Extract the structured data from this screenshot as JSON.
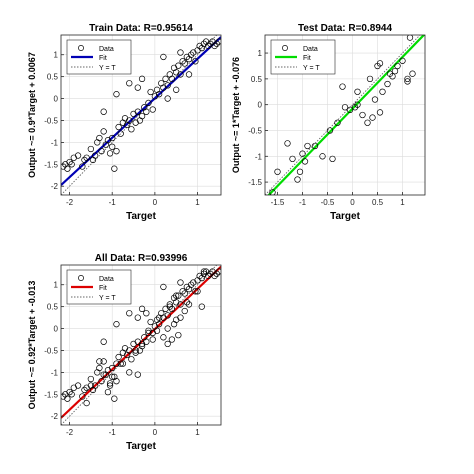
{
  "figure": {
    "background": "#ffffff"
  },
  "chart_data": [
    {
      "type": "scatter",
      "title": "Train Data: R=0.95614",
      "xlabel": "Target",
      "ylabel": "Output ~= 0.9*Target + 0.0067",
      "xlim": [
        -2.2,
        1.55
      ],
      "ylim": [
        -2.2,
        1.45
      ],
      "xticks": [
        -2,
        -1,
        0,
        1
      ],
      "yticks": [
        -2,
        -1.5,
        -1,
        -0.5,
        0,
        0.5,
        1
      ],
      "fit": {
        "slope": 0.9,
        "intercept": 0.0067,
        "color": "#0000b4"
      },
      "legend": {
        "position": "top-left",
        "entries": [
          "Data",
          "Fit",
          "Y = T"
        ]
      },
      "points": [
        [
          -2.15,
          -1.55
        ],
        [
          -2.1,
          -1.5
        ],
        [
          -2.05,
          -1.6
        ],
        [
          -2.0,
          -1.45
        ],
        [
          -1.95,
          -1.5
        ],
        [
          -1.9,
          -1.35
        ],
        [
          -1.8,
          -1.3
        ],
        [
          -1.7,
          -1.55
        ],
        [
          -1.65,
          -1.4
        ],
        [
          -1.6,
          -1.35
        ],
        [
          -1.5,
          -1.15
        ],
        [
          -1.45,
          -1.4
        ],
        [
          -1.4,
          -1.3
        ],
        [
          -1.35,
          -1.0
        ],
        [
          -1.3,
          -0.9
        ],
        [
          -1.25,
          -1.2
        ],
        [
          -1.2,
          -0.75
        ],
        [
          -1.15,
          -1.05
        ],
        [
          -1.1,
          -0.95
        ],
        [
          -1.05,
          -1.25
        ],
        [
          -1.0,
          -0.9
        ],
        [
          -1.0,
          -1.1
        ],
        [
          -0.95,
          -1.6
        ],
        [
          -0.9,
          -1.2
        ],
        [
          -0.85,
          -0.65
        ],
        [
          -0.8,
          -0.8
        ],
        [
          -0.75,
          -0.55
        ],
        [
          -0.7,
          -0.45
        ],
        [
          -0.65,
          -0.6
        ],
        [
          -0.6,
          -0.5
        ],
        [
          -0.55,
          -0.7
        ],
        [
          -0.5,
          -0.35
        ],
        [
          -0.45,
          -0.55
        ],
        [
          -0.4,
          -0.3
        ],
        [
          -0.35,
          -0.5
        ],
        [
          -0.3,
          -0.4
        ],
        [
          -0.25,
          -0.2
        ],
        [
          -0.2,
          -0.3
        ],
        [
          -0.15,
          -0.1
        ],
        [
          -0.1,
          0.15
        ],
        [
          -0.05,
          -0.25
        ],
        [
          0.0,
          0.05
        ],
        [
          0.05,
          0.2
        ],
        [
          0.1,
          0.1
        ],
        [
          0.15,
          0.35
        ],
        [
          0.2,
          0.25
        ],
        [
          0.25,
          0.45
        ],
        [
          0.3,
          0.3
        ],
        [
          0.35,
          0.55
        ],
        [
          0.4,
          0.45
        ],
        [
          0.45,
          0.7
        ],
        [
          0.5,
          0.6
        ],
        [
          0.55,
          0.75
        ],
        [
          0.6,
          0.55
        ],
        [
          0.65,
          0.85
        ],
        [
          0.7,
          0.8
        ],
        [
          0.75,
          0.95
        ],
        [
          0.8,
          0.9
        ],
        [
          0.85,
          1.0
        ],
        [
          0.9,
          1.05
        ],
        [
          0.95,
          0.85
        ],
        [
          1.0,
          1.1
        ],
        [
          1.05,
          1.2
        ],
        [
          1.1,
          1.15
        ],
        [
          1.15,
          1.25
        ],
        [
          1.2,
          1.3
        ],
        [
          1.25,
          1.2
        ],
        [
          1.3,
          1.25
        ],
        [
          1.35,
          1.3
        ],
        [
          1.4,
          1.2
        ],
        [
          -0.9,
          0.1
        ],
        [
          -0.6,
          0.35
        ],
        [
          -1.2,
          -0.3
        ],
        [
          -0.3,
          0.45
        ],
        [
          0.3,
          0.0
        ],
        [
          0.5,
          0.2
        ],
        [
          0.8,
          0.55
        ],
        [
          1.45,
          1.25
        ],
        [
          1.5,
          1.3
        ],
        [
          0.2,
          0.95
        ],
        [
          0.6,
          1.05
        ],
        [
          -0.4,
          0.25
        ]
      ]
    },
    {
      "type": "scatter",
      "title": "Test Data: R=0.8944",
      "xlabel": "Target",
      "ylabel": "Output ~= 1*Target + -0.076",
      "xlim": [
        -1.75,
        1.45
      ],
      "ylim": [
        -1.75,
        1.35
      ],
      "xticks": [
        -1.5,
        -1,
        -0.5,
        0,
        0.5,
        1
      ],
      "yticks": [
        -1.5,
        -1,
        -0.5,
        0,
        0.5,
        1
      ],
      "fit": {
        "slope": 1,
        "intercept": -0.076,
        "color": "#00dc00"
      },
      "legend": {
        "position": "top-left",
        "entries": [
          "Data",
          "Fit",
          "Y = T"
        ]
      },
      "points": [
        [
          -1.6,
          -1.7
        ],
        [
          -1.5,
          -1.3
        ],
        [
          -1.3,
          -0.75
        ],
        [
          -1.2,
          -1.05
        ],
        [
          -1.1,
          -1.45
        ],
        [
          -1.05,
          -1.3
        ],
        [
          -1.0,
          -0.95
        ],
        [
          -0.95,
          -1.1
        ],
        [
          -0.9,
          -0.8
        ],
        [
          -0.75,
          -0.8
        ],
        [
          -0.6,
          -1.0
        ],
        [
          -0.45,
          -0.5
        ],
        [
          -0.4,
          -1.05
        ],
        [
          -0.3,
          -0.35
        ],
        [
          -0.2,
          0.35
        ],
        [
          -0.15,
          -0.05
        ],
        [
          -0.05,
          -0.1
        ],
        [
          0.05,
          -0.05
        ],
        [
          0.1,
          0.0
        ],
        [
          0.1,
          0.25
        ],
        [
          0.2,
          -0.2
        ],
        [
          0.3,
          -0.35
        ],
        [
          0.35,
          0.5
        ],
        [
          0.4,
          -0.25
        ],
        [
          0.45,
          0.1
        ],
        [
          0.5,
          0.75
        ],
        [
          0.55,
          -0.15
        ],
        [
          0.55,
          0.8
        ],
        [
          0.6,
          0.25
        ],
        [
          0.7,
          0.4
        ],
        [
          0.75,
          0.6
        ],
        [
          0.8,
          0.55
        ],
        [
          0.85,
          0.65
        ],
        [
          0.9,
          0.75
        ],
        [
          1.0,
          0.85
        ],
        [
          1.1,
          0.5
        ],
        [
          1.1,
          0.45
        ],
        [
          1.15,
          1.3
        ],
        [
          1.2,
          0.6
        ]
      ]
    },
    {
      "type": "scatter",
      "title": "All Data: R=0.93996",
      "xlabel": "Target",
      "ylabel": "Output ~= 0.92*Target + -0.013",
      "xlim": [
        -2.2,
        1.55
      ],
      "ylim": [
        -2.2,
        1.45
      ],
      "xticks": [
        -2,
        -1,
        0,
        1
      ],
      "yticks": [
        -2,
        -1.5,
        -1,
        -0.5,
        0,
        0.5,
        1
      ],
      "fit": {
        "slope": 0.92,
        "intercept": -0.013,
        "color": "#dc0000"
      },
      "legend": {
        "position": "top-left",
        "entries": [
          "Data",
          "Fit",
          "Y = T"
        ]
      },
      "points": [
        [
          -2.15,
          -1.55
        ],
        [
          -2.1,
          -1.5
        ],
        [
          -2.05,
          -1.6
        ],
        [
          -2.0,
          -1.45
        ],
        [
          -1.95,
          -1.5
        ],
        [
          -1.9,
          -1.35
        ],
        [
          -1.8,
          -1.3
        ],
        [
          -1.7,
          -1.55
        ],
        [
          -1.65,
          -1.4
        ],
        [
          -1.6,
          -1.35
        ],
        [
          -1.6,
          -1.7
        ],
        [
          -1.5,
          -1.15
        ],
        [
          -1.5,
          -1.3
        ],
        [
          -1.45,
          -1.4
        ],
        [
          -1.4,
          -1.3
        ],
        [
          -1.35,
          -1.0
        ],
        [
          -1.3,
          -0.9
        ],
        [
          -1.3,
          -0.75
        ],
        [
          -1.25,
          -1.2
        ],
        [
          -1.2,
          -0.75
        ],
        [
          -1.2,
          -1.05
        ],
        [
          -1.15,
          -1.05
        ],
        [
          -1.1,
          -0.95
        ],
        [
          -1.1,
          -1.45
        ],
        [
          -1.05,
          -1.25
        ],
        [
          -1.05,
          -1.3
        ],
        [
          -1.0,
          -0.9
        ],
        [
          -1.0,
          -1.1
        ],
        [
          -0.95,
          -1.6
        ],
        [
          -0.95,
          -1.1
        ],
        [
          -0.9,
          -1.2
        ],
        [
          -0.9,
          -0.8
        ],
        [
          -0.85,
          -0.65
        ],
        [
          -0.8,
          -0.8
        ],
        [
          -0.75,
          -0.55
        ],
        [
          -0.75,
          -0.8
        ],
        [
          -0.7,
          -0.45
        ],
        [
          -0.65,
          -0.6
        ],
        [
          -0.6,
          -0.5
        ],
        [
          -0.6,
          -1.0
        ],
        [
          -0.55,
          -0.7
        ],
        [
          -0.5,
          -0.35
        ],
        [
          -0.45,
          -0.55
        ],
        [
          -0.45,
          -0.5
        ],
        [
          -0.4,
          -0.3
        ],
        [
          -0.4,
          -1.05
        ],
        [
          -0.35,
          -0.5
        ],
        [
          -0.3,
          -0.4
        ],
        [
          -0.3,
          -0.35
        ],
        [
          -0.25,
          -0.2
        ],
        [
          -0.2,
          -0.3
        ],
        [
          -0.2,
          0.35
        ],
        [
          -0.15,
          -0.1
        ],
        [
          -0.15,
          -0.05
        ],
        [
          -0.1,
          0.15
        ],
        [
          -0.05,
          -0.25
        ],
        [
          -0.05,
          -0.1
        ],
        [
          0.0,
          0.05
        ],
        [
          0.05,
          0.2
        ],
        [
          0.05,
          -0.05
        ],
        [
          0.1,
          0.1
        ],
        [
          0.1,
          0.25
        ],
        [
          0.15,
          0.35
        ],
        [
          0.2,
          0.25
        ],
        [
          0.2,
          -0.2
        ],
        [
          0.25,
          0.45
        ],
        [
          0.3,
          0.3
        ],
        [
          0.3,
          -0.35
        ],
        [
          0.35,
          0.55
        ],
        [
          0.35,
          0.5
        ],
        [
          0.4,
          0.45
        ],
        [
          0.4,
          -0.25
        ],
        [
          0.45,
          0.7
        ],
        [
          0.45,
          0.1
        ],
        [
          0.5,
          0.6
        ],
        [
          0.5,
          0.75
        ],
        [
          0.55,
          0.75
        ],
        [
          0.55,
          -0.15
        ],
        [
          0.6,
          0.55
        ],
        [
          0.6,
          0.25
        ],
        [
          0.65,
          0.85
        ],
        [
          0.7,
          0.8
        ],
        [
          0.7,
          0.4
        ],
        [
          0.75,
          0.95
        ],
        [
          0.75,
          0.6
        ],
        [
          0.8,
          0.9
        ],
        [
          0.85,
          1.0
        ],
        [
          0.9,
          1.05
        ],
        [
          0.95,
          0.85
        ],
        [
          1.0,
          1.1
        ],
        [
          1.0,
          0.85
        ],
        [
          1.05,
          1.2
        ],
        [
          1.1,
          1.15
        ],
        [
          1.1,
          0.5
        ],
        [
          1.15,
          1.25
        ],
        [
          1.15,
          1.3
        ],
        [
          1.2,
          1.3
        ],
        [
          1.25,
          1.2
        ],
        [
          1.3,
          1.25
        ],
        [
          1.35,
          1.3
        ],
        [
          1.4,
          1.2
        ],
        [
          -0.9,
          0.1
        ],
        [
          -0.6,
          0.35
        ],
        [
          -1.2,
          -0.3
        ],
        [
          -0.3,
          0.45
        ],
        [
          0.3,
          0.0
        ],
        [
          0.5,
          0.2
        ],
        [
          0.8,
          0.55
        ],
        [
          1.45,
          1.25
        ],
        [
          1.5,
          1.3
        ],
        [
          0.2,
          0.95
        ],
        [
          0.6,
          1.05
        ],
        [
          -0.4,
          0.25
        ]
      ]
    }
  ]
}
